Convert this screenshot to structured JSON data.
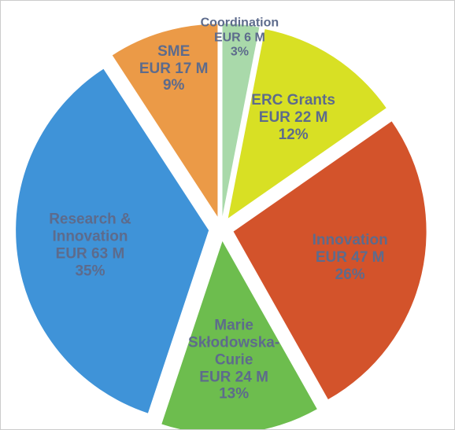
{
  "chart_data": {
    "type": "pie",
    "categories": [
      "Coordination",
      "ERC Grants",
      "Innovation",
      "Marie Skłodowska-Curie",
      "Research & Innovation",
      "SME"
    ],
    "amount_labels": [
      "EUR 6 M",
      "EUR 22 M",
      "EUR 47 M",
      "EUR 24 M",
      "EUR 63 M",
      "EUR 17 M"
    ],
    "values": [
      3,
      12,
      26,
      13,
      35,
      9
    ],
    "value_labels": [
      "3%",
      "12%",
      "26%",
      "13%",
      "35%",
      "9%"
    ],
    "colors": [
      "#a9d9aa",
      "#d8e024",
      "#d3532b",
      "#6dbd4e",
      "#3f93d8",
      "#eb9a47"
    ],
    "exploded": true
  }
}
